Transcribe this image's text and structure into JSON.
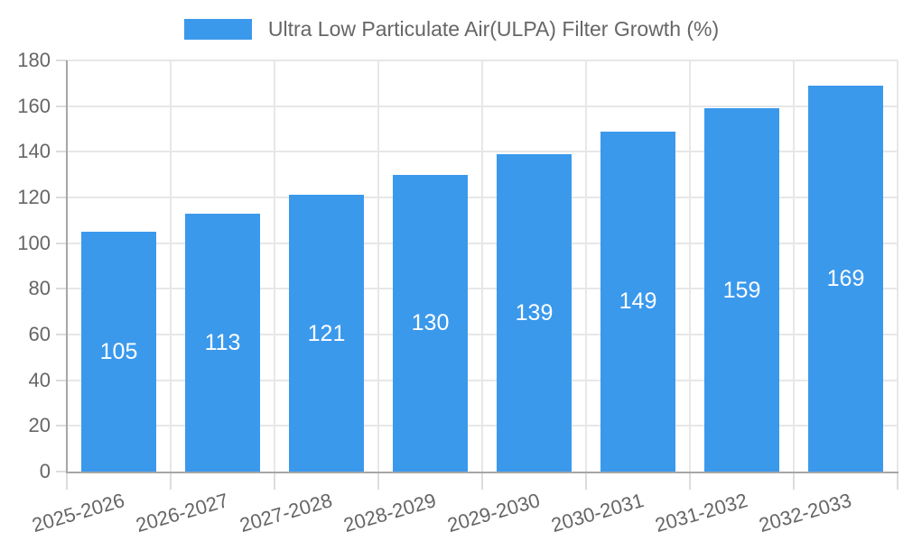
{
  "legend": {
    "label": "Ultra Low Particulate Air(ULPA) Filter Growth (%)"
  },
  "chart_data": {
    "type": "bar",
    "title": "Ultra Low Particulate Air(ULPA) Filter Growth (%)",
    "categories": [
      "2025-2026",
      "2026-2027",
      "2027-2028",
      "2028-2029",
      "2029-2030",
      "2030-2031",
      "2031-2032",
      "2032-2033"
    ],
    "values": [
      105,
      113,
      121,
      130,
      139,
      149,
      159,
      169
    ],
    "series_name": "Ultra Low Particulate Air(ULPA) Filter Growth (%)",
    "xlabel": "",
    "ylabel": "",
    "ylim": [
      0,
      180
    ],
    "ytick_step": 20,
    "ytick_labels": [
      "0",
      "20",
      "40",
      "60",
      "80",
      "100",
      "120",
      "140",
      "160",
      "180"
    ],
    "grid": true,
    "legend_position": "top-center",
    "bar_color": "#3b99ec",
    "value_label_color": "#ffffff",
    "axis_text_color": "#666666",
    "grid_color": "#e7e7e7",
    "tick_color": "#dcdcdc",
    "axis_line_color": "#a6a6a6",
    "background_color": "#ffffff"
  }
}
